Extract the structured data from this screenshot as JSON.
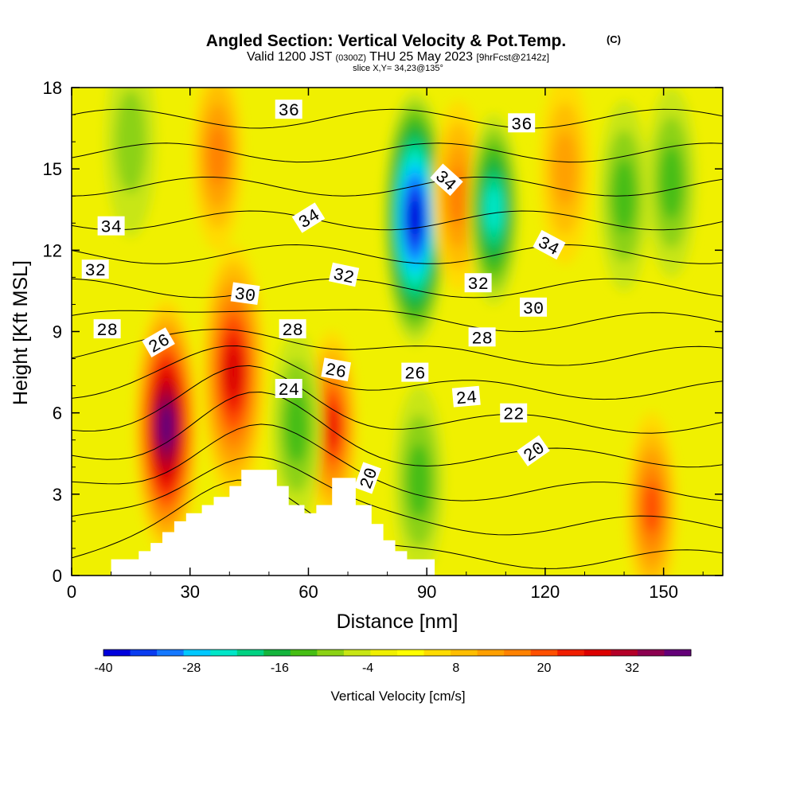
{
  "title": {
    "main": "Angled Section: Vertical Velocity & Pot.Temp.",
    "badge": "(C)",
    "line2_a": "Valid 1200 JST",
    "line2_b": "(0300Z)",
    "line2_c": "THU 25 May 2023",
    "line2_d": "[9hrFcst@2142z]",
    "line3": "slice X,Y= 34,23@135°"
  },
  "chart_data": {
    "type": "heatmap",
    "xlabel": "Distance [nm]",
    "ylabel": "Height [Kft MSL]",
    "xlim": [
      0,
      165
    ],
    "ylim": [
      0,
      18
    ],
    "x_ticks": [
      0,
      30,
      60,
      90,
      120,
      150
    ],
    "y_ticks": [
      0,
      3,
      6,
      9,
      12,
      15,
      18
    ],
    "colorbar": {
      "label": "Vertical Velocity [cm/s]",
      "min": -40,
      "max": 40,
      "step": 4,
      "tick_values": [
        -40,
        -28,
        -16,
        -4,
        8,
        20,
        32
      ],
      "colors": [
        "#0000dc",
        "#0a3cf0",
        "#1478ff",
        "#00c8ff",
        "#00e6c8",
        "#00d282",
        "#14b43c",
        "#46be14",
        "#8cd214",
        "#c8e614",
        "#f0f000",
        "#ffff00",
        "#ffdc00",
        "#ffbe00",
        "#ffa000",
        "#ff8200",
        "#ff5000",
        "#f01e00",
        "#dc0000",
        "#b40028",
        "#8c0050",
        "#640078"
      ]
    },
    "velocity_features": [
      {
        "x": 24,
        "y": 5.5,
        "value": 38
      },
      {
        "x": 41,
        "y": 7.5,
        "value": 28
      },
      {
        "x": 37,
        "y": 15.5,
        "value": 16
      },
      {
        "x": 66,
        "y": 5.5,
        "value": 24
      },
      {
        "x": 87,
        "y": 13.2,
        "value": -40
      },
      {
        "x": 98,
        "y": 14,
        "value": 16
      },
      {
        "x": 107,
        "y": 13.5,
        "value": -24
      },
      {
        "x": 57,
        "y": 5.5,
        "value": -12
      },
      {
        "x": 88,
        "y": 3.5,
        "value": -12
      },
      {
        "x": 140,
        "y": 14,
        "value": -12
      },
      {
        "x": 152,
        "y": 14.5,
        "value": -10
      },
      {
        "x": 125,
        "y": 15,
        "value": 10
      },
      {
        "x": 147,
        "y": 2.5,
        "value": 18
      },
      {
        "x": 15,
        "y": 16,
        "value": -8
      }
    ],
    "theta_labels": [
      {
        "value": "36",
        "x": 55,
        "y": 17.2,
        "angle": 0
      },
      {
        "value": "36",
        "x": 114,
        "y": 16.7,
        "angle": 0
      },
      {
        "value": "34",
        "x": 95,
        "y": 14.6,
        "angle": 42
      },
      {
        "value": "34",
        "x": 60,
        "y": 13.2,
        "angle": -32
      },
      {
        "value": "34",
        "x": 10,
        "y": 12.9,
        "angle": 0
      },
      {
        "value": "34",
        "x": 121,
        "y": 12.2,
        "angle": 28
      },
      {
        "value": "32",
        "x": 6,
        "y": 11.3,
        "angle": 0
      },
      {
        "value": "32",
        "x": 69,
        "y": 11.1,
        "angle": 12
      },
      {
        "value": "32",
        "x": 103,
        "y": 10.8,
        "angle": 0
      },
      {
        "value": "30",
        "x": 44,
        "y": 10.4,
        "angle": 8
      },
      {
        "value": "30",
        "x": 117,
        "y": 9.9,
        "angle": 0
      },
      {
        "value": "28",
        "x": 9,
        "y": 9.1,
        "angle": 0
      },
      {
        "value": "28",
        "x": 56,
        "y": 9.1,
        "angle": 0
      },
      {
        "value": "28",
        "x": 104,
        "y": 8.8,
        "angle": 0
      },
      {
        "value": "26",
        "x": 22,
        "y": 8.6,
        "angle": -30
      },
      {
        "value": "26",
        "x": 67,
        "y": 7.6,
        "angle": 10
      },
      {
        "value": "26",
        "x": 87,
        "y": 7.5,
        "angle": 0
      },
      {
        "value": "24",
        "x": 55,
        "y": 6.9,
        "angle": 0
      },
      {
        "value": "24",
        "x": 100,
        "y": 6.6,
        "angle": -5
      },
      {
        "value": "22",
        "x": 112,
        "y": 6.0,
        "angle": 0
      },
      {
        "value": "20",
        "x": 75,
        "y": 3.6,
        "angle": -70
      },
      {
        "value": "20",
        "x": 117,
        "y": 4.6,
        "angle": -35
      }
    ],
    "terrain": [
      [
        0,
        0
      ],
      [
        10,
        0
      ],
      [
        10,
        0.6
      ],
      [
        17,
        0.6
      ],
      [
        17,
        0.9
      ],
      [
        20,
        0.9
      ],
      [
        20,
        1.2
      ],
      [
        23,
        1.2
      ],
      [
        23,
        1.6
      ],
      [
        26,
        1.6
      ],
      [
        26,
        2.0
      ],
      [
        29,
        2.0
      ],
      [
        29,
        2.3
      ],
      [
        33,
        2.3
      ],
      [
        33,
        2.6
      ],
      [
        36,
        2.6
      ],
      [
        36,
        2.9
      ],
      [
        40,
        2.9
      ],
      [
        40,
        3.3
      ],
      [
        43,
        3.3
      ],
      [
        43,
        3.9
      ],
      [
        52,
        3.9
      ],
      [
        52,
        3.3
      ],
      [
        55,
        3.3
      ],
      [
        55,
        2.6
      ],
      [
        59,
        2.6
      ],
      [
        59,
        2.3
      ],
      [
        62,
        2.3
      ],
      [
        62,
        2.6
      ],
      [
        66,
        2.6
      ],
      [
        66,
        3.6
      ],
      [
        72,
        3.6
      ],
      [
        72,
        2.6
      ],
      [
        76,
        2.6
      ],
      [
        76,
        1.9
      ],
      [
        79,
        1.9
      ],
      [
        79,
        1.3
      ],
      [
        82,
        1.3
      ],
      [
        82,
        0.9
      ],
      [
        85,
        0.9
      ],
      [
        85,
        0.6
      ],
      [
        92,
        0.6
      ],
      [
        92,
        0
      ],
      [
        165,
        0
      ]
    ]
  }
}
